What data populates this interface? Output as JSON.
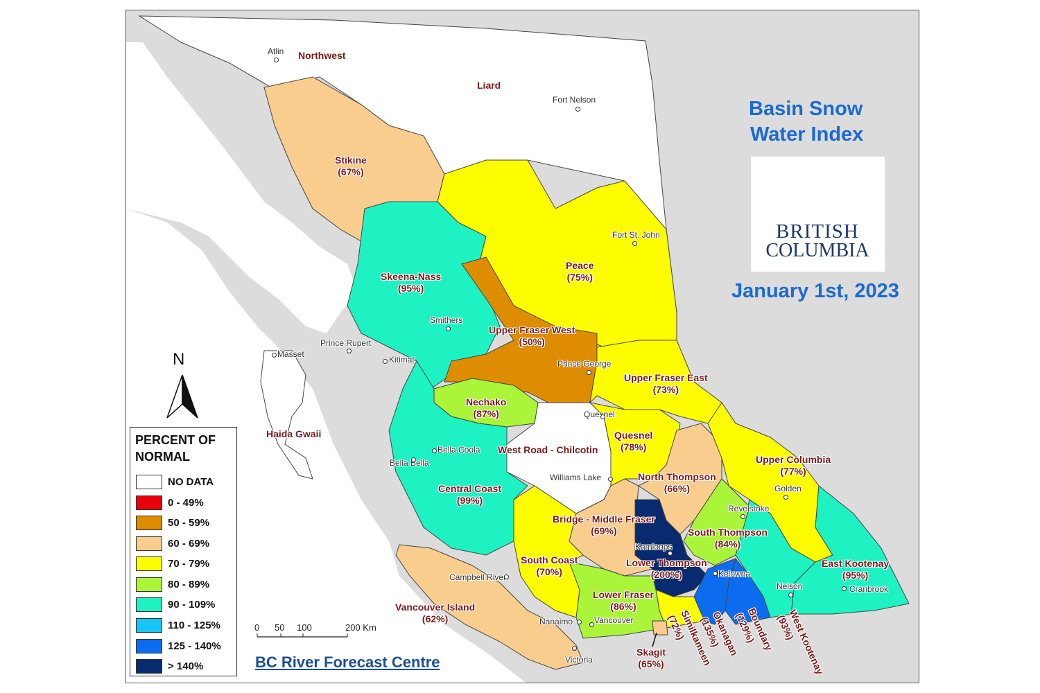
{
  "title": {
    "line1": "Basin Snow",
    "line2": "Water Index"
  },
  "date": "January 1st, 2023",
  "logo": {
    "line1": "BRITISH",
    "line2": "COLUMBIA"
  },
  "legend": {
    "title_line1": "PERCENT OF",
    "title_line2": "NORMAL",
    "items": [
      {
        "label": "NO DATA",
        "color": "#ffffff"
      },
      {
        "label": "0 - 49%",
        "color": "#e8000b"
      },
      {
        "label": "50 - 59%",
        "color": "#de8c00"
      },
      {
        "label": "60 - 69%",
        "color": "#f9cd8d"
      },
      {
        "label": "70 - 79%",
        "color": "#fdfd00"
      },
      {
        "label": "80 - 89%",
        "color": "#aaf53a"
      },
      {
        "label": "90 - 109%",
        "color": "#1ef2c3"
      },
      {
        "label": "110 - 125%",
        "color": "#18c4f6"
      },
      {
        "label": "125 - 140%",
        "color": "#0c6cf0"
      },
      {
        "label": "> 140%",
        "color": "#082a6e"
      }
    ]
  },
  "north_arrow": "N",
  "scale": {
    "ticks": [
      "0",
      "50",
      "100",
      "200 Km"
    ]
  },
  "credit": "BC River Forecast Centre",
  "regions": {
    "northwest": "Northwest",
    "liard": "Liard",
    "haida_gwaii": "Haida Gwaii"
  },
  "basins": {
    "stikine": {
      "name": "Stikine",
      "pct": "(67%)"
    },
    "skeena_nass": {
      "name": "Skeena-Nass",
      "pct": "(95%)"
    },
    "peace": {
      "name": "Peace",
      "pct": "(75%)"
    },
    "upper_fraser_west": {
      "name": "Upper Fraser West",
      "pct": "(50%)"
    },
    "upper_fraser_east": {
      "name": "Upper Fraser East",
      "pct": "(73%)"
    },
    "nechako": {
      "name": "Nechako",
      "pct": "(87%)"
    },
    "west_road_chilcotin": {
      "name": "West Road - Chilcotin"
    },
    "quesnel": {
      "name": "Quesnel",
      "pct": "(78%)"
    },
    "north_thompson": {
      "name": "North Thompson",
      "pct": "(66%)"
    },
    "upper_columbia": {
      "name": "Upper Columbia",
      "pct": "(77%)"
    },
    "central_coast": {
      "name": "Central Coast",
      "pct": "(99%)"
    },
    "bridge_middle_fraser": {
      "name": "Bridge - Middle Fraser",
      "pct": "(69%)"
    },
    "south_thompson": {
      "name": "South Thompson",
      "pct": "(84%)"
    },
    "lower_thompson": {
      "name": "Lower Thompson",
      "pct": "(200%)"
    },
    "south_coast": {
      "name": "South Coast",
      "pct": "(70%)"
    },
    "east_kootenay": {
      "name": "East Kootenay",
      "pct": "(95%)"
    },
    "lower_fraser": {
      "name": "Lower Fraser",
      "pct": "(86%)"
    },
    "vancouver_island": {
      "name": "Vancouver Island",
      "pct": "(62%)"
    },
    "skagit": {
      "name": "Skagit",
      "pct": "(65%)"
    },
    "similkameen": {
      "name": "Similkameen",
      "pct": "(72%)"
    },
    "okanagan": {
      "name": "Okanagan",
      "pct": "(135%)"
    },
    "boundary": {
      "name": "Boundary",
      "pct": "(129%)"
    },
    "west_kootenay": {
      "name": "West Kootenay",
      "pct": "(93%)"
    }
  },
  "cities": {
    "atlin": "Atlin",
    "fort_nelson": "Fort Nelson",
    "fort_st_john": "Fort St. John",
    "smithers": "Smithers",
    "prince_rupert": "Prince Rupert",
    "masset": "Masset",
    "kitimat": "Kitimat",
    "prince_george": "Prince George",
    "quesnel": "Quesnel",
    "bella_coola": "Bella Coola",
    "bella_bella": "Bella Bella",
    "williams_lake": "Williams Lake",
    "golden": "Golden",
    "revelstoke": "Revelstoke",
    "kamloops": "Kamloops",
    "kelowna": "Kelowna",
    "nelson": "Nelson",
    "cranbrook": "Cranbrook",
    "campbell_river": "Campbell River",
    "nanaimo": "Nanaimo",
    "vancouver": "Vancouver",
    "victoria": "Victoria"
  }
}
